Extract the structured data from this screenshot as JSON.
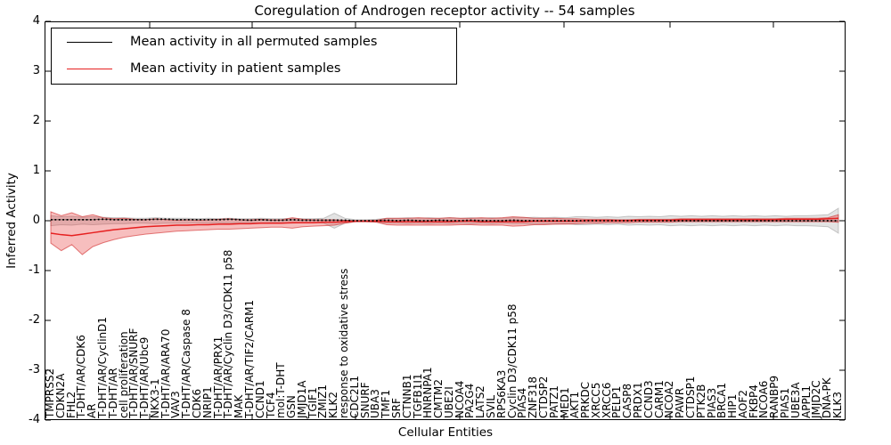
{
  "chart_data": {
    "type": "line",
    "title": "Coregulation of Androgen receptor activity -- 54 samples",
    "xlabel": "Cellular Entities",
    "ylabel": "Inferred Activity",
    "ylim": [
      -4,
      4
    ],
    "yticks": [
      "4",
      "3",
      "2",
      "1",
      "0",
      "-1",
      "-2",
      "-3",
      "-4"
    ],
    "grid": false,
    "legend_position": "upper left",
    "categories": [
      "TMPRSS2",
      "CDKN2A",
      "FHL2",
      "T-DHT/AR/CDK6",
      "AR",
      "T-DHT/AR/CyclinD1",
      "T-DHT/AR",
      "cell proliferation",
      "T-DHT/AR/SNURF",
      "T-DHT/AR/Ubc9",
      "NKX3-1",
      "T-DHT/AR/ARA70",
      "VAV3",
      "T-DHT/AR/Caspase 8",
      "CDK6",
      "NRIP1",
      "T-DHT/AR/PRX1",
      "T-DHT/AR/Cyclin D3/CDK11 p58",
      "MAK",
      "T-DHT/AR/TIF2/CARM1",
      "CCND1",
      "TCF4",
      "mol:T-DHT",
      "GSN",
      "JMJD1A",
      "TGIF1",
      "ZMIZ1",
      "KLK2",
      "response to oxidative stress",
      "CDC2L1",
      "SNURF",
      "UBA3",
      "TMF1",
      "SRF",
      "CTNNB1",
      "TGFB1I1",
      "HNRNPA1",
      "CMTM2",
      "UBE2I",
      "NCOA4",
      "PA2G4",
      "LATS2",
      "SVIL",
      "RPS6KA3",
      "Cyclin D3/CDK11 p58",
      "PIAS4",
      "ZNF318",
      "CTDSP2",
      "PATZ1",
      "MED1",
      "AKT1",
      "PRKDC",
      "XRCC5",
      "XRCC6",
      "PELP1",
      "CASP8",
      "PRDX1",
      "CCND3",
      "CARM1",
      "NCOA2",
      "PAWR",
      "CTDSP1",
      "PTK2B",
      "PIAS3",
      "BRCA1",
      "HIP1",
      "AOF2",
      "FKBP4",
      "NCOA6",
      "RANBP9",
      "PIAS1",
      "UBE3A",
      "APPL1",
      "JMJD2C",
      "DNA-PK",
      "KLK3"
    ],
    "series": [
      {
        "name": "Mean activity in all permuted samples",
        "color": "#000000",
        "line_style": "dotted",
        "values": [
          0.02,
          0.02,
          0.02,
          0.02,
          0.02,
          0.03,
          0.02,
          0.02,
          0.02,
          0.02,
          0.03,
          0.03,
          0.02,
          0.02,
          0.02,
          0.02,
          0.02,
          0.03,
          0.02,
          0.01,
          0.02,
          0.01,
          0.01,
          0.02,
          0.01,
          0.01,
          0.01,
          0.01,
          0.01,
          0,
          0,
          0,
          0.01,
          0,
          0.01,
          0,
          0,
          0.01,
          0,
          0,
          0.01,
          0,
          0,
          0,
          0.01,
          0,
          0,
          0,
          0,
          0,
          0,
          0,
          0,
          0,
          0,
          0,
          0,
          0,
          0,
          0,
          0,
          0,
          0,
          0,
          0,
          0,
          0,
          0,
          0,
          0,
          0,
          0,
          0,
          0,
          0,
          0
        ]
      },
      {
        "name": "Mean activity in patient samples",
        "color": "#e62020",
        "line_style": "solid",
        "values": [
          -0.25,
          -0.28,
          -0.3,
          -0.27,
          -0.24,
          -0.21,
          -0.18,
          -0.16,
          -0.14,
          -0.12,
          -0.11,
          -0.1,
          -0.09,
          -0.09,
          -0.08,
          -0.08,
          -0.07,
          -0.07,
          -0.06,
          -0.06,
          -0.05,
          -0.05,
          -0.05,
          -0.04,
          -0.04,
          -0.04,
          -0.03,
          -0.03,
          -0.02,
          -0.01,
          -0.01,
          -0.01,
          -0.02,
          -0.02,
          -0.02,
          -0.02,
          -0.02,
          -0.02,
          -0.02,
          -0.01,
          -0.01,
          -0.02,
          -0.02,
          -0.02,
          -0.02,
          -0.02,
          -0.01,
          -0.01,
          -0.01,
          -0.01,
          -0.01,
          0,
          0,
          0,
          0,
          0,
          0.01,
          0.01,
          0.01,
          0.01,
          0.02,
          0.02,
          0.02,
          0.02,
          0.02,
          0.02,
          0.02,
          0.02,
          0.02,
          0.02,
          0.03,
          0.03,
          0.03,
          0.03,
          0.04,
          0.05
        ]
      }
    ],
    "bands": [
      {
        "name": "permuted samples spread",
        "color": "rgba(128,128,128,0.22)",
        "edge_color": "rgba(110,110,110,0.35)",
        "upper": [
          0.1,
          0.08,
          0.09,
          0.07,
          0.08,
          0.07,
          0.06,
          0.06,
          0.05,
          0.05,
          0.06,
          0.05,
          0.05,
          0.05,
          0.04,
          0.05,
          0.04,
          0.05,
          0.04,
          0.04,
          0.05,
          0.04,
          0.04,
          0.05,
          0.04,
          0.04,
          0.05,
          0.15,
          0.05,
          0.02,
          0.02,
          0.03,
          0.05,
          0.05,
          0.06,
          0.05,
          0.06,
          0.05,
          0.06,
          0.05,
          0.06,
          0.05,
          0.06,
          0.05,
          0.06,
          0.06,
          0.07,
          0.06,
          0.07,
          0.06,
          0.08,
          0.08,
          0.07,
          0.08,
          0.07,
          0.09,
          0.08,
          0.09,
          0.08,
          0.1,
          0.09,
          0.1,
          0.09,
          0.1,
          0.09,
          0.1,
          0.09,
          0.1,
          0.09,
          0.1,
          0.09,
          0.1,
          0.1,
          0.11,
          0.12,
          0.25
        ],
        "lower": [
          -0.1,
          -0.08,
          -0.09,
          -0.07,
          -0.08,
          -0.07,
          -0.06,
          -0.06,
          -0.05,
          -0.05,
          -0.06,
          -0.05,
          -0.05,
          -0.05,
          -0.04,
          -0.05,
          -0.04,
          -0.05,
          -0.04,
          -0.04,
          -0.05,
          -0.04,
          -0.04,
          -0.05,
          -0.04,
          -0.04,
          -0.05,
          -0.15,
          -0.05,
          -0.02,
          -0.02,
          -0.03,
          -0.05,
          -0.05,
          -0.06,
          -0.05,
          -0.06,
          -0.05,
          -0.06,
          -0.05,
          -0.06,
          -0.05,
          -0.06,
          -0.05,
          -0.06,
          -0.06,
          -0.07,
          -0.06,
          -0.07,
          -0.06,
          -0.08,
          -0.08,
          -0.07,
          -0.08,
          -0.07,
          -0.09,
          -0.08,
          -0.09,
          -0.08,
          -0.1,
          -0.09,
          -0.1,
          -0.09,
          -0.1,
          -0.09,
          -0.1,
          -0.09,
          -0.1,
          -0.09,
          -0.1,
          -0.09,
          -0.1,
          -0.1,
          -0.11,
          -0.12,
          -0.25
        ]
      },
      {
        "name": "patient samples spread",
        "color": "rgba(228,40,40,0.30)",
        "edge_color": "rgba(205,25,25,0.55)",
        "upper": [
          0.18,
          0.1,
          0.16,
          0.08,
          0.12,
          0.06,
          0.04,
          0.05,
          0.03,
          0.02,
          0.04,
          0.02,
          0.01,
          0.02,
          0.01,
          0.02,
          0.03,
          0.04,
          0.02,
          0.02,
          0.03,
          0.02,
          0.02,
          0.06,
          0.03,
          0.02,
          0.02,
          0.02,
          0.01,
          0,
          0,
          0.01,
          0.05,
          0.05,
          0.05,
          0.06,
          0.05,
          0.05,
          0.06,
          0.05,
          0.05,
          0.06,
          0.05,
          0.06,
          0.08,
          0.07,
          0.05,
          0.05,
          0.05,
          0.04,
          0.04,
          0.03,
          0.03,
          0.03,
          0.02,
          0.02,
          0.03,
          0.03,
          0.03,
          0.03,
          0.04,
          0.04,
          0.04,
          0.04,
          0.04,
          0.04,
          0.04,
          0.04,
          0.04,
          0.04,
          0.05,
          0.05,
          0.05,
          0.05,
          0.06,
          0.12
        ],
        "lower": [
          -0.45,
          -0.6,
          -0.48,
          -0.68,
          -0.52,
          -0.44,
          -0.38,
          -0.33,
          -0.3,
          -0.27,
          -0.25,
          -0.23,
          -0.21,
          -0.2,
          -0.19,
          -0.18,
          -0.17,
          -0.17,
          -0.16,
          -0.15,
          -0.14,
          -0.13,
          -0.13,
          -0.15,
          -0.12,
          -0.11,
          -0.1,
          -0.09,
          -0.05,
          -0.02,
          -0.02,
          -0.03,
          -0.08,
          -0.09,
          -0.09,
          -0.09,
          -0.09,
          -0.09,
          -0.09,
          -0.08,
          -0.08,
          -0.09,
          -0.09,
          -0.09,
          -0.11,
          -0.1,
          -0.08,
          -0.08,
          -0.07,
          -0.07,
          -0.06,
          -0.05,
          -0.05,
          -0.04,
          -0.04,
          -0.04,
          -0.03,
          -0.03,
          -0.03,
          -0.03,
          -0.02,
          -0.02,
          -0.02,
          -0.02,
          -0.02,
          -0.02,
          -0.02,
          -0.02,
          -0.02,
          -0.02,
          -0.02,
          -0.02,
          -0.02,
          -0.02,
          -0.02,
          -0.03
        ]
      }
    ]
  }
}
